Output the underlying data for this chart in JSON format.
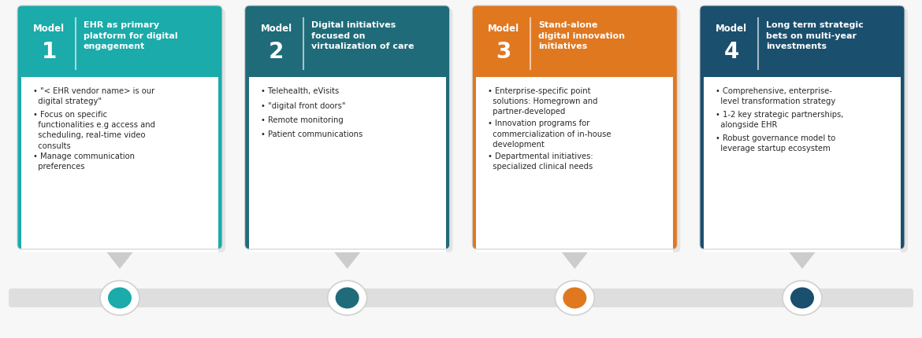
{
  "models": [
    {
      "number": "1",
      "header_color": "#1aabaa",
      "dot_color": "#1aabaa",
      "title": "EHR as primary\nplatform for digital\nengagement",
      "bullets": [
        "• \"< EHR vendor name> is our\n  digital strategy\"",
        "• Focus on specific\n  functionalities e.g access and\n  scheduling, real-time video\n  consults",
        "• Manage communication\n  preferences"
      ]
    },
    {
      "number": "2",
      "header_color": "#1f6b7a",
      "dot_color": "#1f6b7a",
      "title": "Digital initiatives\nfocused on\nvirtualization of care",
      "bullets": [
        "• Telehealth, eVisits",
        "• \"digital front doors\"",
        "• Remote monitoring",
        "• Patient communications"
      ]
    },
    {
      "number": "3",
      "header_color": "#e07820",
      "dot_color": "#e07820",
      "title": "Stand-alone\ndigital innovation\ninitiatives",
      "bullets": [
        "• Enterprise-specific point\n  solutions: Homegrown and\n  partner-developed",
        "• Innovation programs for\n  commercialization of in-house\n  development",
        "• Departmental initiatives:\n  specialized clinical needs"
      ]
    },
    {
      "number": "4",
      "header_color": "#1a4f6e",
      "dot_color": "#1a4f6e",
      "title": "Long term strategic\nbets on multi-year\ninvestments",
      "bullets": [
        "• Comprehensive, enterprise-\n  level transformation strategy",
        "• 1-2 key strategic partnerships,\n  alongside EHR",
        "• Robust governance model to\n  leverage startup ecosystem"
      ]
    }
  ],
  "background_color": "#f7f7f7",
  "card_bg": "#ffffff",
  "timeline_color": "#d8d8d8",
  "dot_outer_color": "#ffffff"
}
